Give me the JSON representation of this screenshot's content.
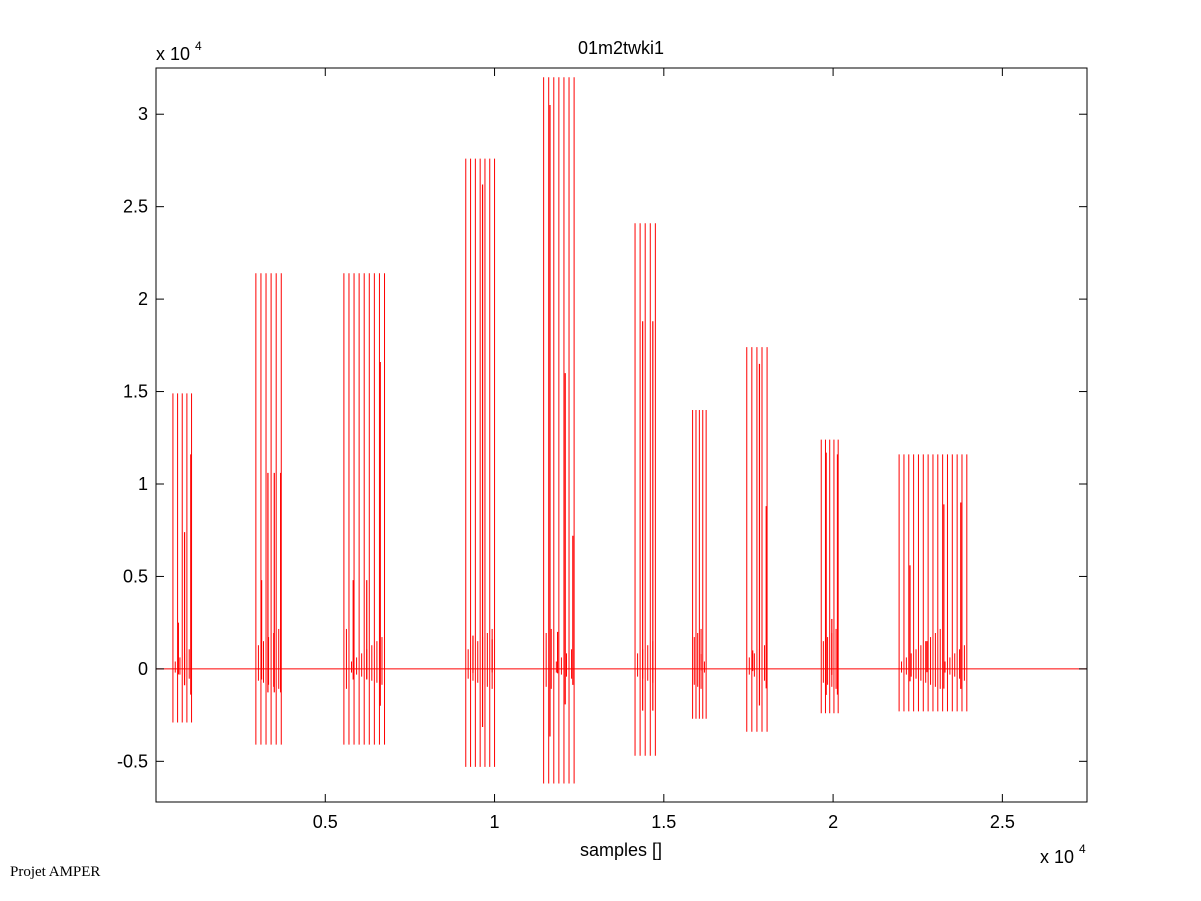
{
  "chart_data": {
    "type": "line",
    "title": "01m2twki1",
    "xlabel": "samples []",
    "ylabel": "",
    "x_multiplier": "x 10",
    "x_multiplier_exp": "4",
    "y_multiplier": "x 10",
    "y_multiplier_exp": "4",
    "xlim": [
      0,
      27500
    ],
    "ylim": [
      -7200,
      32500
    ],
    "xticks": [
      5000,
      10000,
      15000,
      20000,
      25000
    ],
    "xtick_labels": [
      "0.5",
      "1",
      "1.5",
      "2",
      "2.5"
    ],
    "yticks": [
      -5000,
      0,
      5000,
      10000,
      15000,
      20000,
      25000,
      30000
    ],
    "ytick_labels": [
      "-0.5",
      "0",
      "0.5",
      "1",
      "1.5",
      "2",
      "2.5",
      "3"
    ],
    "grid": false,
    "series": [
      {
        "color": "#ff0000",
        "baseline": 0,
        "bursts": [
          {
            "start": 500,
            "end": 1050,
            "max": 14900,
            "min": -2900,
            "peaks": [
              2500,
              7400,
              11600
            ]
          },
          {
            "start": 2950,
            "end": 3700,
            "max": 21400,
            "min": -4100,
            "peaks": [
              4800,
              10600,
              10600,
              10600
            ]
          },
          {
            "start": 5550,
            "end": 6750,
            "max": 21400,
            "min": -4100,
            "peaks": [
              4800,
              4800,
              16600
            ]
          },
          {
            "start": 9150,
            "end": 10000,
            "max": 27600,
            "min": -5300,
            "peaks": [
              1800,
              26200,
              1600
            ]
          },
          {
            "start": 11450,
            "end": 12350,
            "max": 32000,
            "min": -6200,
            "peaks": [
              30500,
              2000,
              16000,
              7200
            ]
          },
          {
            "start": 14150,
            "end": 14750,
            "max": 24100,
            "min": -4700,
            "peaks": [
              18800,
              18800
            ]
          },
          {
            "start": 15850,
            "end": 16250,
            "max": 14000,
            "min": -2700,
            "peaks": [
              800
            ]
          },
          {
            "start": 17450,
            "end": 18050,
            "max": 17400,
            "min": -3400,
            "peaks": [
              1000,
              16500,
              8800
            ]
          },
          {
            "start": 19650,
            "end": 20150,
            "max": 12400,
            "min": -2400,
            "peaks": [
              11700,
              2700,
              11600
            ]
          },
          {
            "start": 21950,
            "end": 23950,
            "max": 11600,
            "min": -2300,
            "peaks": [
              5600,
              1500,
              8900,
              9000
            ]
          }
        ]
      }
    ]
  },
  "footer": {
    "credit": "Projet AMPER"
  }
}
